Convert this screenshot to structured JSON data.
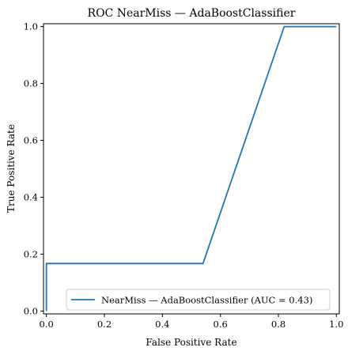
{
  "chart_data": {
    "type": "line",
    "title": "ROC NearMiss — AdaBoostClassifier",
    "xlabel": "False Positive Rate",
    "ylabel": "True Positive Rate",
    "xlim": [
      0,
      1
    ],
    "ylim": [
      0,
      1
    ],
    "x_ticks": [
      0.0,
      0.2,
      0.4,
      0.6,
      0.8,
      1.0
    ],
    "y_ticks": [
      0.0,
      0.2,
      0.4,
      0.6,
      0.8,
      1.0
    ],
    "x_tick_labels": [
      "0.0",
      "0.2",
      "0.4",
      "0.6",
      "0.8",
      "1.0"
    ],
    "y_tick_labels": [
      "0.0",
      "0.2",
      "0.4",
      "0.6",
      "0.8",
      "1.0"
    ],
    "grid": false,
    "legend_position": "lower-right",
    "series": [
      {
        "name": "NearMiss — AdaBoostClassifier (AUC = 0.43)",
        "color": "#1f77b4",
        "x": [
          0.0,
          0.0,
          0.54,
          0.82,
          1.0
        ],
        "y": [
          0.0,
          0.167,
          0.167,
          1.0,
          1.0
        ]
      }
    ]
  }
}
